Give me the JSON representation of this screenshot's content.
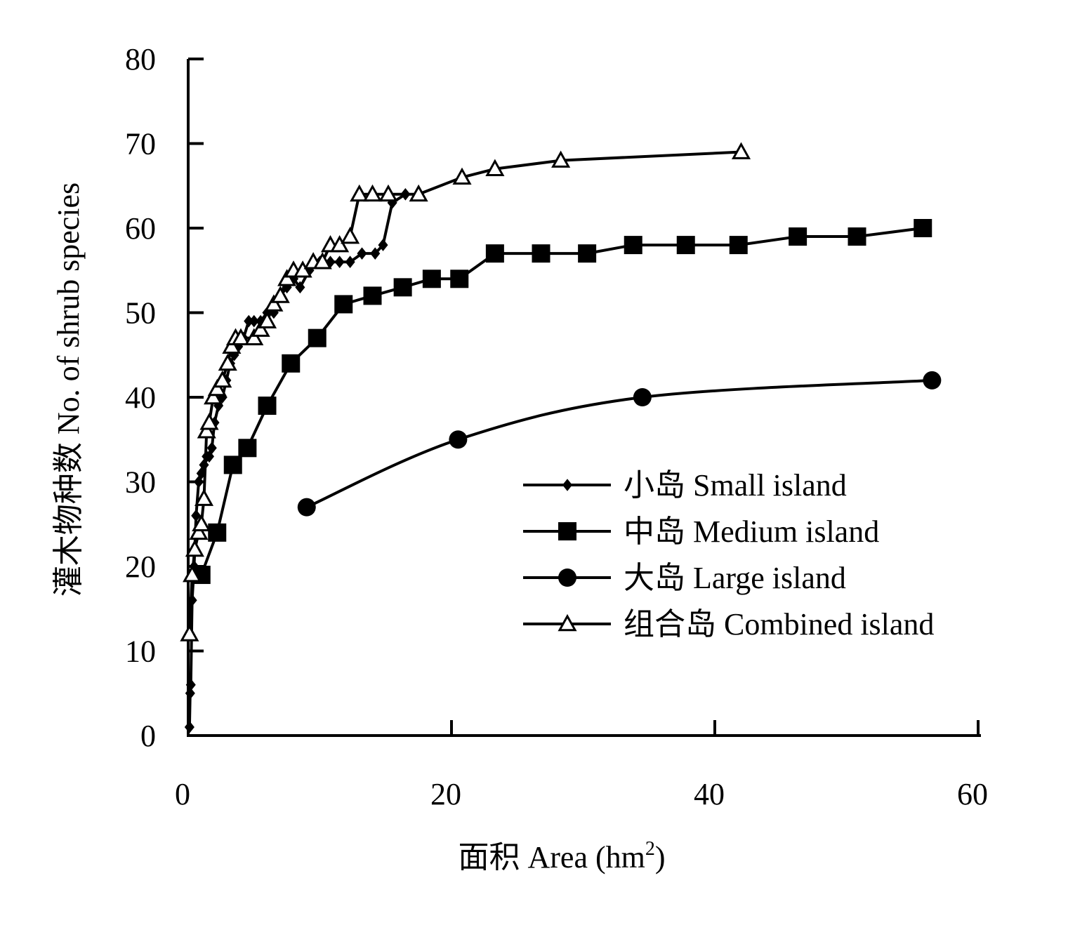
{
  "chart_data": {
    "type": "line",
    "title": "",
    "xlabel": "面积 Area (hm",
    "xlabel_superscript": "2",
    "xlabel_suffix": ")",
    "ylabel": "灌木物种数 No. of shrub species",
    "xlim": [
      0,
      60
    ],
    "ylim": [
      0,
      80
    ],
    "x_ticks": [
      "0",
      "20",
      "40",
      "60"
    ],
    "y_ticks": [
      "0",
      "10",
      "20",
      "30",
      "40",
      "50",
      "60",
      "70",
      "80"
    ],
    "grid": false,
    "legend_position": "right",
    "series": [
      {
        "name": "小岛 Small island",
        "marker": "diamond",
        "points": [
          [
            0.1,
            1
          ],
          [
            0.15,
            5
          ],
          [
            0.2,
            6
          ],
          [
            0.3,
            16
          ],
          [
            0.45,
            20
          ],
          [
            0.6,
            26
          ],
          [
            0.8,
            30
          ],
          [
            1.0,
            31
          ],
          [
            1.2,
            32
          ],
          [
            1.4,
            33
          ],
          [
            1.6,
            33
          ],
          [
            1.8,
            34
          ],
          [
            2.0,
            37
          ],
          [
            2.3,
            39
          ],
          [
            2.6,
            40
          ],
          [
            2.9,
            42
          ],
          [
            3.2,
            44
          ],
          [
            3.5,
            45
          ],
          [
            3.8,
            46
          ],
          [
            4.2,
            47
          ],
          [
            4.6,
            49
          ],
          [
            5.0,
            49
          ],
          [
            5.5,
            49
          ],
          [
            6.0,
            50
          ],
          [
            6.5,
            50
          ],
          [
            7.0,
            52
          ],
          [
            7.5,
            53
          ],
          [
            8.0,
            54
          ],
          [
            8.5,
            53
          ],
          [
            9.2,
            55
          ],
          [
            10.0,
            56
          ],
          [
            10.8,
            56
          ],
          [
            11.5,
            56
          ],
          [
            12.3,
            56
          ],
          [
            13.2,
            57
          ],
          [
            14.2,
            57
          ],
          [
            14.8,
            58
          ],
          [
            15.5,
            63
          ],
          [
            16.5,
            64
          ]
        ]
      },
      {
        "name": "中岛 Medium island",
        "marker": "square",
        "points": [
          [
            1.0,
            19
          ],
          [
            2.2,
            24
          ],
          [
            3.4,
            32
          ],
          [
            4.5,
            34
          ],
          [
            6.0,
            39
          ],
          [
            7.8,
            44
          ],
          [
            9.8,
            47
          ],
          [
            11.8,
            51
          ],
          [
            14.0,
            52
          ],
          [
            16.3,
            53
          ],
          [
            18.5,
            54
          ],
          [
            20.6,
            54
          ],
          [
            23.3,
            57
          ],
          [
            26.8,
            57
          ],
          [
            30.3,
            57
          ],
          [
            33.8,
            58
          ],
          [
            37.8,
            58
          ],
          [
            41.8,
            58
          ],
          [
            46.3,
            59
          ],
          [
            50.8,
            59
          ],
          [
            55.8,
            60
          ]
        ]
      },
      {
        "name": "大岛 Large island",
        "marker": "circle",
        "points": [
          [
            9.0,
            27
          ],
          [
            20.5,
            35
          ],
          [
            34.5,
            40
          ],
          [
            56.5,
            42
          ]
        ]
      },
      {
        "name": "组合岛 Combined island",
        "marker": "triangle",
        "points": [
          [
            0.1,
            12
          ],
          [
            0.3,
            19
          ],
          [
            0.5,
            22
          ],
          [
            0.8,
            24
          ],
          [
            1.0,
            25
          ],
          [
            1.2,
            28
          ],
          [
            1.4,
            36
          ],
          [
            1.6,
            37
          ],
          [
            1.9,
            40
          ],
          [
            2.2,
            41
          ],
          [
            2.6,
            42
          ],
          [
            3.0,
            44
          ],
          [
            3.3,
            46
          ],
          [
            3.6,
            47
          ],
          [
            4.0,
            47
          ],
          [
            5.0,
            47
          ],
          [
            5.5,
            48
          ],
          [
            6.0,
            49
          ],
          [
            6.5,
            51
          ],
          [
            7.0,
            52
          ],
          [
            7.5,
            54
          ],
          [
            8.0,
            55
          ],
          [
            8.7,
            55
          ],
          [
            9.5,
            56
          ],
          [
            10.2,
            56
          ],
          [
            10.8,
            58
          ],
          [
            11.5,
            58
          ],
          [
            12.3,
            59
          ],
          [
            13.0,
            64
          ],
          [
            14.0,
            64
          ],
          [
            15.2,
            64
          ],
          [
            17.5,
            64
          ],
          [
            20.8,
            66
          ],
          [
            23.3,
            67
          ],
          [
            28.3,
            68
          ],
          [
            42.0,
            69
          ]
        ]
      }
    ]
  }
}
